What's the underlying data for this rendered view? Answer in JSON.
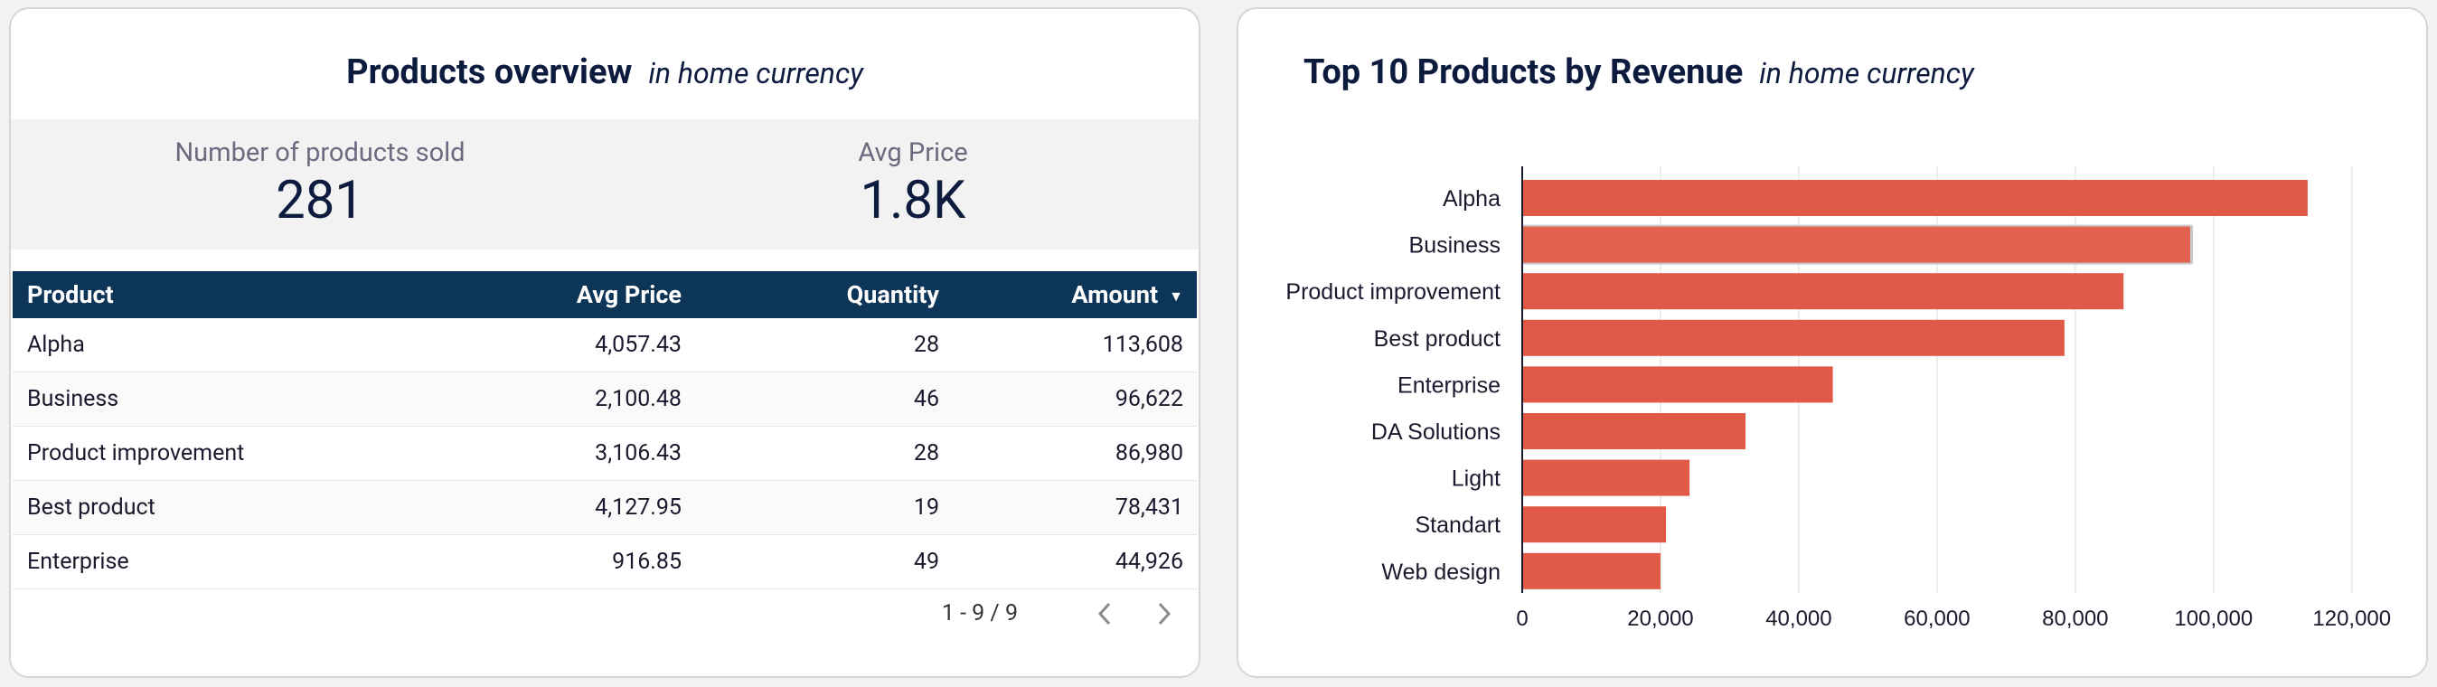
{
  "overview": {
    "title": "Products overview",
    "subtitle": "in home currency",
    "kpis": {
      "products_label": "Number of products sold",
      "products_value": "281",
      "avg_label": "Avg Price",
      "avg_value": "1.8K"
    },
    "table": {
      "headers": [
        "Product",
        "Avg Price",
        "Quantity",
        "Amount"
      ],
      "rows": [
        [
          "Alpha",
          "4,057.43",
          "28",
          "113,608"
        ],
        [
          "Business",
          "2,100.48",
          "46",
          "96,622"
        ],
        [
          "Product improvement",
          "3,106.43",
          "28",
          "86,980"
        ],
        [
          "Best product",
          "4,127.95",
          "19",
          "78,431"
        ],
        [
          "Enterprise",
          "916.85",
          "49",
          "44,926"
        ]
      ]
    },
    "pager": {
      "range": "1 - 9 / 9"
    }
  },
  "top10": {
    "title": "Top 10 Products by Revenue",
    "subtitle": "in home currency"
  },
  "colors": {
    "bar": "#e05a47",
    "header_bg": "#0d3557",
    "highlight_bar": "#e0624f"
  },
  "chart_data": {
    "type": "bar",
    "orientation": "horizontal",
    "title": "Top 10 Products by Revenue",
    "subtitle": "in home currency",
    "categories": [
      "Alpha",
      "Business",
      "Product improvement",
      "Best product",
      "Enterprise",
      "DA Solutions",
      "Light",
      "Standart",
      "Web design"
    ],
    "values": [
      113608,
      96622,
      86980,
      78431,
      44926,
      32300,
      24200,
      20800,
      20000
    ],
    "xlim": [
      0,
      125000
    ],
    "xticks": [
      0,
      20000,
      40000,
      60000,
      80000,
      100000,
      120000
    ],
    "xtick_labels": [
      "0",
      "20,000",
      "40,000",
      "60,000",
      "80,000",
      "100,000",
      "120,000"
    ],
    "xlabel": "",
    "ylabel": "",
    "grid": true,
    "highlighted_index": 1
  }
}
